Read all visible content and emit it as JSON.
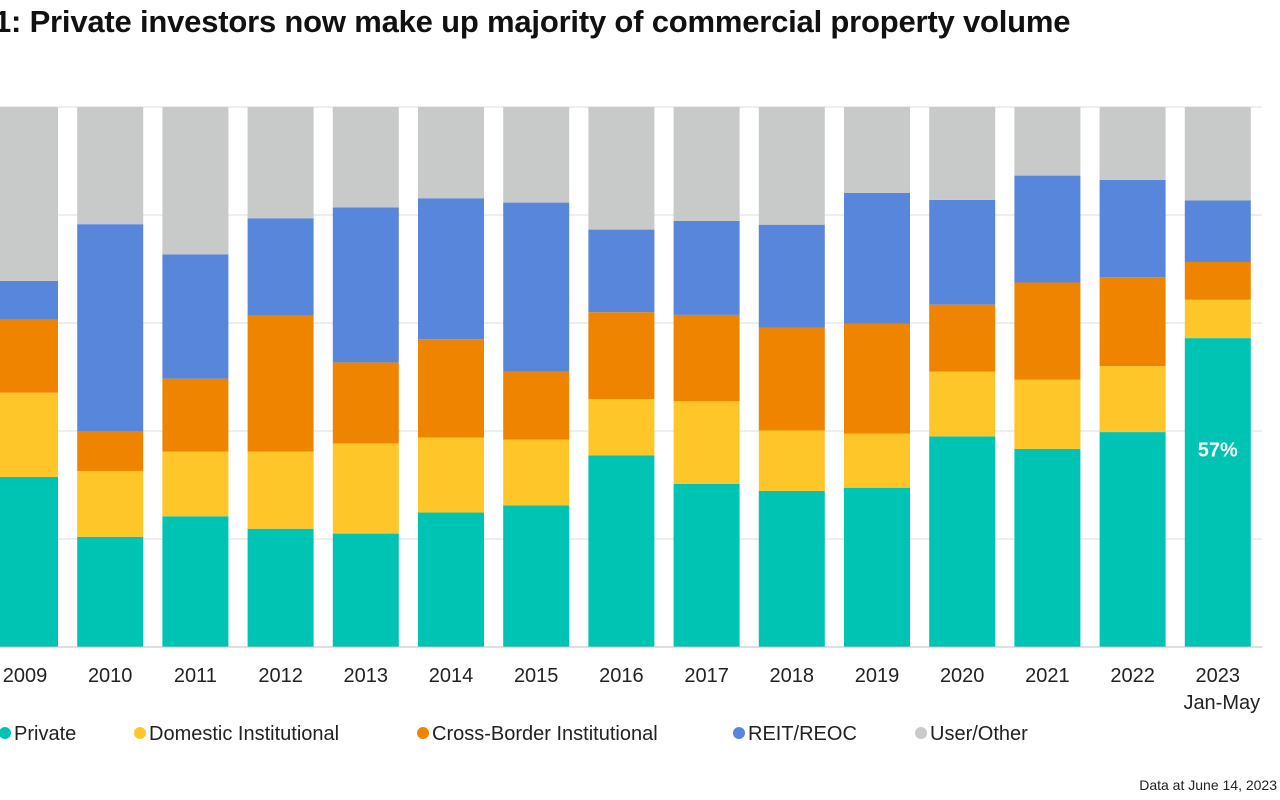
{
  "title": "1: Private investors now make up majority of commercial property volume",
  "note": "Data at June 14, 2023",
  "colors": {
    "Private": "#00c4b3",
    "Domestic Institutional": "#ffc629",
    "Cross-Border Institutional": "#ef8400",
    "REIT/REOC": "#5886da",
    "User/Other": "#c8c9c9"
  },
  "chart_data": {
    "type": "bar",
    "stacked": true,
    "ylim": [
      0,
      100
    ],
    "grid": true,
    "legend_position": "bottom",
    "categories": [
      "2009",
      "2010",
      "2011",
      "2012",
      "2013",
      "2014",
      "2015",
      "2016",
      "2017",
      "2018",
      "2019",
      "2020",
      "2021",
      "2022",
      "2023"
    ],
    "category_sublabels": [
      "",
      "",
      "",
      "",
      "",
      "",
      "",
      "",
      "",
      "",
      "",
      "",
      "",
      "",
      "Jan-May"
    ],
    "series": [
      {
        "name": "Private",
        "values": [
          31.5,
          20.4,
          24.2,
          21.9,
          21.0,
          24.9,
          26.2,
          35.5,
          30.2,
          28.9,
          29.5,
          39.0,
          36.7,
          39.8,
          57.2
        ]
      },
      {
        "name": "Domestic Institutional",
        "values": [
          15.6,
          12.2,
          12.0,
          14.3,
          16.7,
          13.9,
          12.2,
          10.4,
          15.3,
          11.2,
          10.0,
          12.0,
          12.8,
          12.2,
          7.1
        ]
      },
      {
        "name": "Cross-Border Institutional",
        "values": [
          13.5,
          7.4,
          13.5,
          25.2,
          15.0,
          18.2,
          12.6,
          16.1,
          16.0,
          19.0,
          20.4,
          12.4,
          18.0,
          16.5,
          7.0
        ]
      },
      {
        "name": "REIT/REOC",
        "values": [
          7.2,
          38.3,
          23.0,
          18.0,
          28.7,
          26.1,
          31.3,
          15.3,
          17.4,
          19.1,
          24.2,
          19.4,
          19.8,
          18.0,
          11.4
        ]
      },
      {
        "name": "User/Other",
        "values": [
          32.2,
          21.7,
          27.3,
          20.6,
          18.6,
          16.9,
          17.7,
          22.7,
          21.1,
          21.8,
          15.9,
          17.2,
          12.7,
          13.5,
          17.3
        ]
      }
    ],
    "annotations": [
      {
        "category": "2023",
        "series": "Private",
        "text": "57%"
      }
    ]
  }
}
